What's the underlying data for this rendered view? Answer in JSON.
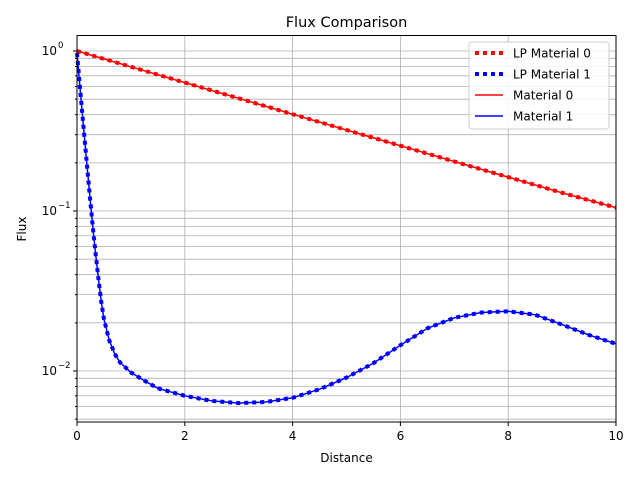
{
  "chart_data": {
    "type": "line",
    "title": "Flux Comparison",
    "xlabel": "Distance",
    "ylabel": "Flux",
    "xlim": [
      0,
      10
    ],
    "ylim": [
      0.0048,
      1.25
    ],
    "yscale": "log",
    "grid": true,
    "grid_y_minor": true,
    "legend_placement": "top-right",
    "x_ticks": [
      0,
      2,
      4,
      6,
      8,
      10
    ],
    "x_tick_labels": [
      "0",
      "2",
      "4",
      "6",
      "8",
      "10"
    ],
    "y_ticks": [
      0.01,
      0.1,
      1
    ],
    "y_tick_labels": [
      "10",
      "10",
      "10"
    ],
    "y_tick_exponents": [
      "−2",
      "−1",
      "0"
    ],
    "legend": [
      "LP Material 0",
      "LP Material 1",
      "Material 0",
      "Material 1"
    ],
    "series": [
      {
        "name": "Material 0",
        "color": "#ff0000",
        "style": "solid",
        "x": [
          0,
          1,
          2,
          3,
          4,
          5,
          6,
          7,
          8,
          9,
          10
        ],
        "y": [
          1.0,
          0.797,
          0.635,
          0.506,
          0.403,
          0.321,
          0.256,
          0.204,
          0.163,
          0.13,
          0.105
        ]
      },
      {
        "name": "LP Material 0",
        "color": "#ff0000",
        "style": "dotted",
        "x": [
          0,
          1,
          2,
          3,
          4,
          5,
          6,
          7,
          8,
          9,
          10
        ],
        "y": [
          1.0,
          0.797,
          0.635,
          0.506,
          0.403,
          0.321,
          0.256,
          0.204,
          0.163,
          0.13,
          0.105
        ]
      },
      {
        "name": "Material 1",
        "color": "#0000ff",
        "style": "solid",
        "x": [
          0,
          0.05,
          0.1,
          0.15,
          0.2,
          0.25,
          0.3,
          0.35,
          0.4,
          0.45,
          0.5,
          0.6,
          0.7,
          0.8,
          1.0,
          1.2,
          1.5,
          2.0,
          2.5,
          3.0,
          3.5,
          4.0,
          4.5,
          5.0,
          5.5,
          6.0,
          6.5,
          7.0,
          7.5,
          8.0,
          8.5,
          9.0,
          9.5,
          10.0
        ],
        "y": [
          0.97,
          0.62,
          0.4,
          0.26,
          0.17,
          0.112,
          0.075,
          0.052,
          0.037,
          0.027,
          0.021,
          0.0155,
          0.0128,
          0.0113,
          0.0098,
          0.0089,
          0.0078,
          0.007,
          0.0065,
          0.0063,
          0.0064,
          0.0068,
          0.0077,
          0.0091,
          0.0112,
          0.0145,
          0.0185,
          0.0215,
          0.0232,
          0.0236,
          0.0225,
          0.0195,
          0.0168,
          0.0148
        ]
      },
      {
        "name": "LP Material 1",
        "color": "#0000ff",
        "style": "dotted",
        "x": [
          0,
          0.05,
          0.1,
          0.15,
          0.2,
          0.25,
          0.3,
          0.35,
          0.4,
          0.45,
          0.5,
          0.6,
          0.7,
          0.8,
          1.0,
          1.2,
          1.5,
          2.0,
          2.5,
          3.0,
          3.5,
          4.0,
          4.5,
          5.0,
          5.5,
          6.0,
          6.5,
          7.0,
          7.5,
          8.0,
          8.5,
          9.0,
          9.5,
          10.0
        ],
        "y": [
          0.97,
          0.62,
          0.4,
          0.26,
          0.17,
          0.112,
          0.075,
          0.052,
          0.037,
          0.027,
          0.021,
          0.0155,
          0.0128,
          0.0113,
          0.0098,
          0.0089,
          0.0078,
          0.007,
          0.0065,
          0.0063,
          0.0064,
          0.0068,
          0.0077,
          0.0091,
          0.0112,
          0.0145,
          0.0185,
          0.0215,
          0.0232,
          0.0236,
          0.0225,
          0.0195,
          0.0168,
          0.0148
        ]
      }
    ]
  }
}
